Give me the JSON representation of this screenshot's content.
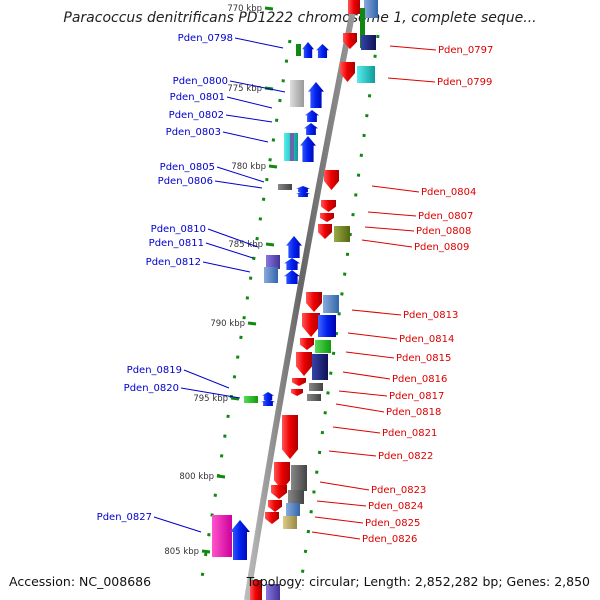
{
  "title": "Paracoccus denitrificans PD1222 chromosome 1, complete seque...",
  "footer": {
    "accession": "Accession: NC_008686",
    "summary": "Topology: circular; Length: 2,852,282 bp; Genes: 2,850"
  },
  "scale_labels": [
    "770 kbp",
    "775 kbp",
    "780 kbp",
    "785 kbp",
    "790 kbp",
    "795 kbp",
    "800 kbp",
    "805 kbp"
  ],
  "genes_left": [
    {
      "name": "Pden_0798",
      "color": "#0000cc"
    },
    {
      "name": "Pden_0800",
      "color": "#0000cc"
    },
    {
      "name": "Pden_0801",
      "color": "#0000cc"
    },
    {
      "name": "Pden_0802",
      "color": "#0000cc"
    },
    {
      "name": "Pden_0803",
      "color": "#0000cc"
    },
    {
      "name": "Pden_0805",
      "color": "#0000cc"
    },
    {
      "name": "Pden_0806",
      "color": "#0000cc"
    },
    {
      "name": "Pden_0810",
      "color": "#0000cc"
    },
    {
      "name": "Pden_0811",
      "color": "#0000cc"
    },
    {
      "name": "Pden_0812",
      "color": "#0000cc"
    },
    {
      "name": "Pden_0819",
      "color": "#0000cc"
    },
    {
      "name": "Pden_0820",
      "color": "#0000cc"
    },
    {
      "name": "Pden_0827",
      "color": "#0000cc"
    }
  ],
  "genes_right": [
    {
      "name": "Pden_0797",
      "color": "#dd0000"
    },
    {
      "name": "Pden_0799",
      "color": "#dd0000"
    },
    {
      "name": "Pden_0804",
      "color": "#dd0000"
    },
    {
      "name": "Pden_0807",
      "color": "#dd0000"
    },
    {
      "name": "Pden_0808",
      "color": "#dd0000"
    },
    {
      "name": "Pden_0809",
      "color": "#dd0000"
    },
    {
      "name": "Pden_0813",
      "color": "#dd0000"
    },
    {
      "name": "Pden_0814",
      "color": "#dd0000"
    },
    {
      "name": "Pden_0815",
      "color": "#dd0000"
    },
    {
      "name": "Pden_0816",
      "color": "#dd0000"
    },
    {
      "name": "Pden_0817",
      "color": "#dd0000"
    },
    {
      "name": "Pden_0818",
      "color": "#dd0000"
    },
    {
      "name": "Pden_0821",
      "color": "#dd0000"
    },
    {
      "name": "Pden_0822",
      "color": "#dd0000"
    },
    {
      "name": "Pden_0823",
      "color": "#dd0000"
    },
    {
      "name": "Pden_0824",
      "color": "#dd0000"
    },
    {
      "name": "Pden_0825",
      "color": "#dd0000"
    },
    {
      "name": "Pden_0826",
      "color": "#dd0000"
    }
  ],
  "colors": {
    "backbone": "#888888",
    "forward_cds": "#ee0000",
    "reverse_cds": "#0022ee",
    "dots": "#118811"
  }
}
